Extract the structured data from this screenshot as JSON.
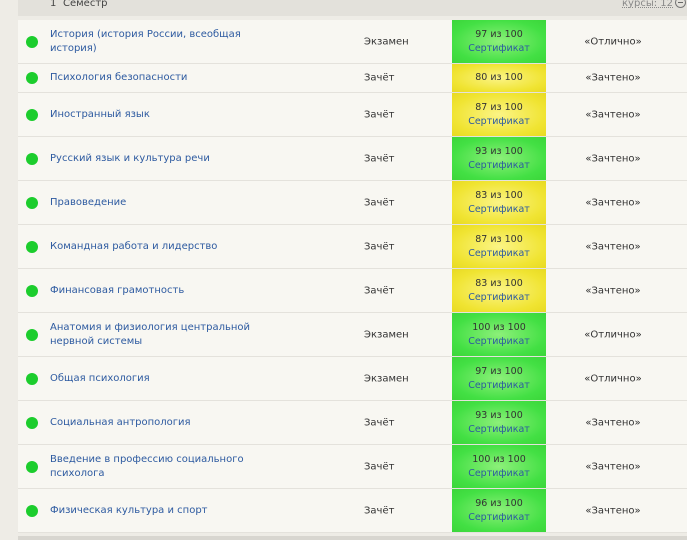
{
  "semester": {
    "number": "1",
    "label": "Семестр",
    "courses": "курсы: 12"
  },
  "courses": [
    {
      "subject": "История (история России, всеобщая история)",
      "control": "Экзамен",
      "score": "97 из 100",
      "certificate": "Сертификат",
      "grade": "«Отлично»",
      "color": "green"
    },
    {
      "subject": "Психология безопасности",
      "control": "Зачёт",
      "score": "80 из 100",
      "certificate": "",
      "grade": "«Зачтено»",
      "color": "yellow"
    },
    {
      "subject": "Иностранный язык",
      "control": "Зачёт",
      "score": "87 из 100",
      "certificate": "Сертификат",
      "grade": "«Зачтено»",
      "color": "yellow"
    },
    {
      "subject": "Русский язык и культура речи",
      "control": "Зачёт",
      "score": "93 из 100",
      "certificate": "Сертификат",
      "grade": "«Зачтено»",
      "color": "green"
    },
    {
      "subject": "Правоведение",
      "control": "Зачёт",
      "score": "83 из 100",
      "certificate": "Сертификат",
      "grade": "«Зачтено»",
      "color": "yellow"
    },
    {
      "subject": "Командная работа и лидерство",
      "control": "Зачёт",
      "score": "87 из 100",
      "certificate": "Сертификат",
      "grade": "«Зачтено»",
      "color": "yellow"
    },
    {
      "subject": "Финансовая грамотность",
      "control": "Зачёт",
      "score": "83 из 100",
      "certificate": "Сертификат",
      "grade": "«Зачтено»",
      "color": "yellow"
    },
    {
      "subject": "Анатомия и физиология центральной нервной системы",
      "control": "Экзамен",
      "score": "100 из 100",
      "certificate": "Сертификат",
      "grade": "«Отлично»",
      "color": "green"
    },
    {
      "subject": "Общая психология",
      "control": "Экзамен",
      "score": "97 из 100",
      "certificate": "Сертификат",
      "grade": "«Отлично»",
      "color": "green"
    },
    {
      "subject": "Социальная антропология",
      "control": "Зачёт",
      "score": "93 из 100",
      "certificate": "Сертификат",
      "grade": "«Зачтено»",
      "color": "green"
    },
    {
      "subject": "Введение в профессию социального психолога",
      "control": "Зачёт",
      "score": "100 из 100",
      "certificate": "Сертификат",
      "grade": "«Зачтено»",
      "color": "green"
    },
    {
      "subject": "Физическая культура и спорт",
      "control": "Зачёт",
      "score": "96 из 100",
      "certificate": "Сертификат",
      "grade": "«Зачтено»",
      "color": "green"
    }
  ]
}
